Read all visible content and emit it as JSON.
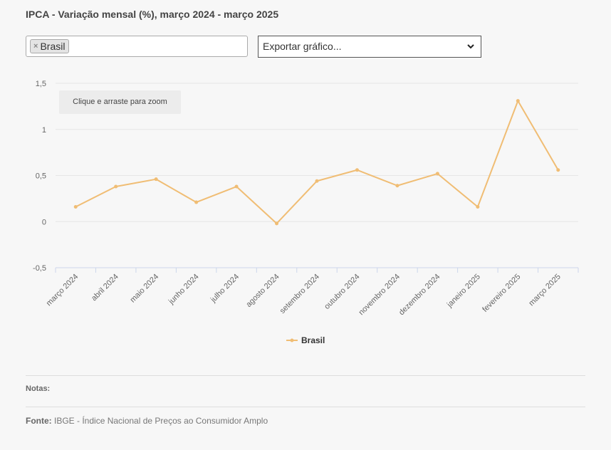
{
  "title": "IPCA - Variação mensal (%), março 2024 - março 2025",
  "filter": {
    "tag_label": "Brasil",
    "remove_symbol": "×"
  },
  "export": {
    "label": "Exportar gráfico..."
  },
  "zoom_hint": "Clique e arraste para zoom",
  "notes_label": "Notas:",
  "source": {
    "label": "Fonte:",
    "text": "IBGE - Índice Nacional de Preços ao Consumidor Amplo"
  },
  "colors": {
    "series": "#f0bd74",
    "grid": "#e6e6e6",
    "axis": "#ccd6eb"
  },
  "chart_data": {
    "type": "line",
    "title": "IPCA - Variação mensal (%), março 2024 - março 2025",
    "xlabel": "",
    "ylabel": "",
    "ylim": [
      -0.5,
      1.5
    ],
    "yticks": [
      -0.5,
      0,
      0.5,
      1,
      1.5
    ],
    "ytick_labels": [
      "-0,5",
      "0",
      "0,5",
      "1",
      "1,5"
    ],
    "grid": true,
    "legend": "bottom-center",
    "categories": [
      "março 2024",
      "abril 2024",
      "maio 2024",
      "junho 2024",
      "julho 2024",
      "agosto 2024",
      "setembro 2024",
      "outubro 2024",
      "novembro 2024",
      "dezembro 2024",
      "janeiro 2025",
      "fevereiro 2025",
      "março 2025"
    ],
    "series": [
      {
        "name": "Brasil",
        "values": [
          0.16,
          0.38,
          0.46,
          0.21,
          0.38,
          -0.02,
          0.44,
          0.56,
          0.39,
          0.52,
          0.16,
          1.31,
          0.56
        ]
      }
    ]
  }
}
